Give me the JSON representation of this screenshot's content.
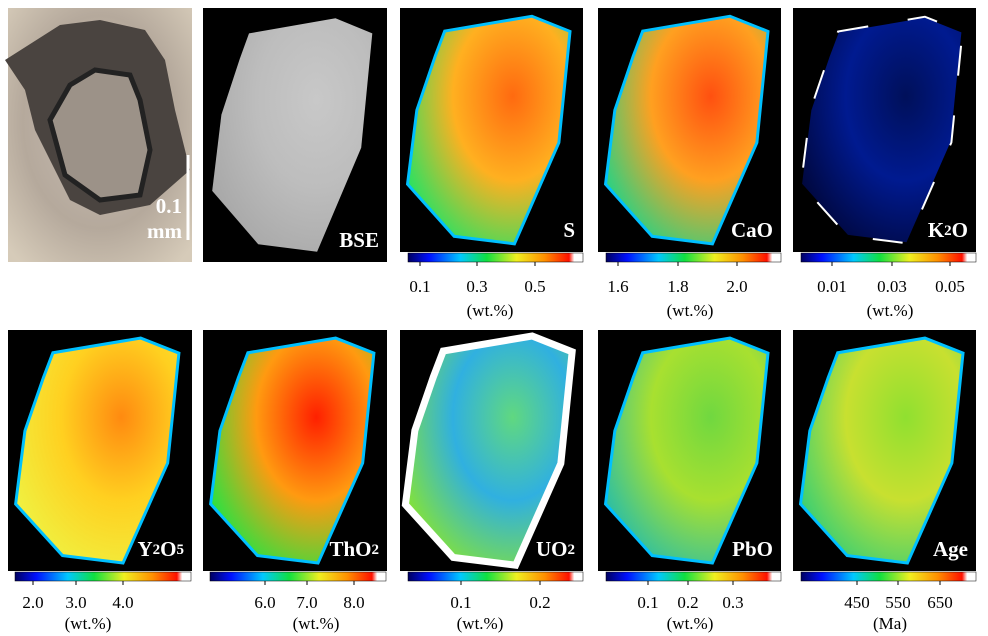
{
  "scale_bar": {
    "value": "0.1",
    "unit": "mm"
  },
  "panels": [
    {
      "label": "BSE"
    },
    {
      "label": "S",
      "ticks": [
        "0.1",
        "0.3",
        "0.5"
      ],
      "unit": "(wt.%)"
    },
    {
      "label": "CaO",
      "ticks": [
        "1.6",
        "1.8",
        "2.0"
      ],
      "unit": "(wt.%)"
    },
    {
      "label": "K2O",
      "ticks": [
        "0.01",
        "0.03",
        "0.05"
      ],
      "unit": "(wt.%)"
    },
    {
      "label": "Y2O5",
      "ticks": [
        "2.0",
        "3.0",
        "4.0"
      ],
      "unit": "(wt.%)"
    },
    {
      "label": "ThO2",
      "ticks": [
        "6.0",
        "7.0",
        "8.0"
      ],
      "unit": "(wt.%)"
    },
    {
      "label": "UO2",
      "ticks": [
        "0.1",
        "0.2"
      ],
      "unit": "(wt.%)"
    },
    {
      "label": "PbO",
      "ticks": [
        "0.1",
        "0.2",
        "0.3"
      ],
      "unit": "(wt.%)"
    },
    {
      "label": "Age",
      "ticks": [
        "450",
        "550",
        "650"
      ],
      "unit": "(Ma)"
    }
  ]
}
